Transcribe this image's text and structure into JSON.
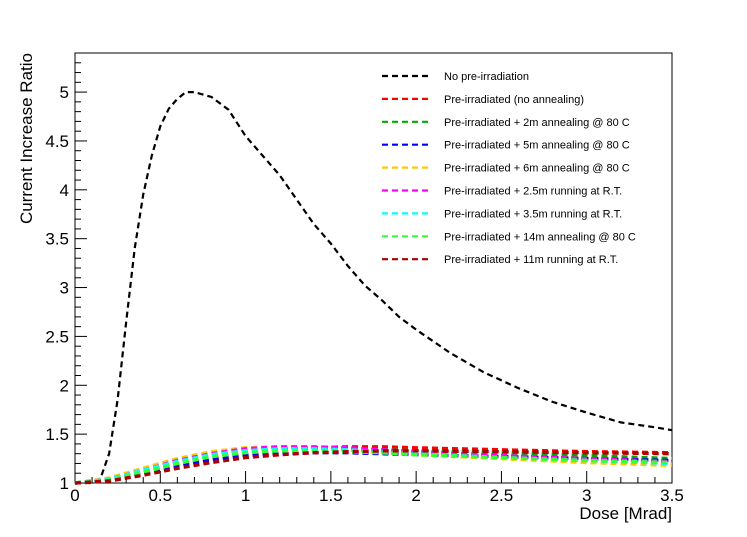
{
  "chart_data": {
    "type": "line",
    "title": "",
    "xlabel": "Dose [Mrad]",
    "ylabel": "Current Increase Ratio",
    "xlim": [
      0,
      3.5
    ],
    "ylim": [
      1,
      5.4
    ],
    "x_ticks": [
      0,
      0.5,
      1,
      1.5,
      2,
      2.5,
      3,
      3.5
    ],
    "x_tick_labels": [
      "0",
      "0.5",
      "1",
      "1.5",
      "2",
      "2.5",
      "3",
      "3.5"
    ],
    "y_ticks": [
      1,
      1.5,
      2,
      2.5,
      3,
      3.5,
      4,
      4.5,
      5
    ],
    "y_tick_labels": [
      "1",
      "1.5",
      "2",
      "2.5",
      "3",
      "3.5",
      "4",
      "4.5",
      "5"
    ],
    "legend_position": "top-right",
    "line_style": "dashed",
    "series": [
      {
        "name": "No pre-irradiation",
        "color": "#000000",
        "x": [
          0,
          0.1,
          0.15,
          0.2,
          0.25,
          0.3,
          0.35,
          0.4,
          0.45,
          0.5,
          0.55,
          0.6,
          0.65,
          0.7,
          0.8,
          0.9,
          1.0,
          1.1,
          1.2,
          1.3,
          1.4,
          1.5,
          1.6,
          1.7,
          1.8,
          1.9,
          2.0,
          2.2,
          2.4,
          2.6,
          2.8,
          3.0,
          3.2,
          3.4,
          3.5
        ],
        "y": [
          1.0,
          1.0,
          1.05,
          1.3,
          1.85,
          2.65,
          3.4,
          3.95,
          4.35,
          4.65,
          4.83,
          4.93,
          5.0,
          5.0,
          4.95,
          4.82,
          4.55,
          4.35,
          4.15,
          3.9,
          3.65,
          3.45,
          3.22,
          3.02,
          2.87,
          2.7,
          2.57,
          2.33,
          2.13,
          1.97,
          1.83,
          1.72,
          1.62,
          1.57,
          1.54
        ]
      },
      {
        "name": "Pre-irradiated (no annealing)",
        "color": "#ff0000",
        "x": [
          0,
          0.2,
          0.4,
          0.6,
          0.8,
          1.0,
          1.2,
          1.4,
          1.6,
          1.8,
          2.0,
          2.5,
          3.0,
          3.5
        ],
        "y": [
          1.0,
          1.03,
          1.1,
          1.18,
          1.25,
          1.3,
          1.34,
          1.36,
          1.37,
          1.37,
          1.36,
          1.34,
          1.32,
          1.31
        ]
      },
      {
        "name": "Pre-irradiated + 2m annealing @ 80 C",
        "color": "#00aa00",
        "x": [
          0,
          0.2,
          0.4,
          0.6,
          0.8,
          1.0,
          1.2,
          1.4,
          1.6,
          1.8,
          2.0,
          2.5,
          3.0,
          3.5
        ],
        "y": [
          1.0,
          1.04,
          1.12,
          1.21,
          1.28,
          1.33,
          1.35,
          1.36,
          1.35,
          1.34,
          1.33,
          1.31,
          1.28,
          1.25
        ]
      },
      {
        "name": "Pre-irradiated + 5m annealing @ 80 C",
        "color": "#0000ff",
        "x": [
          0,
          0.2,
          0.4,
          0.6,
          0.8,
          1.0,
          1.2,
          1.4,
          1.6,
          1.8,
          2.0,
          2.5,
          3.0,
          3.5
        ],
        "y": [
          1.0,
          1.03,
          1.1,
          1.18,
          1.24,
          1.28,
          1.3,
          1.31,
          1.31,
          1.3,
          1.29,
          1.27,
          1.25,
          1.23
        ]
      },
      {
        "name": "Pre-irradiated + 6m annealing @ 80 C",
        "color": "#ffc800",
        "x": [
          0,
          0.2,
          0.4,
          0.6,
          0.8,
          1.0,
          1.2,
          1.4,
          1.6,
          1.8,
          2.0,
          2.5,
          3.0,
          3.5
        ],
        "y": [
          1.0,
          1.05,
          1.15,
          1.25,
          1.32,
          1.36,
          1.37,
          1.36,
          1.34,
          1.31,
          1.29,
          1.25,
          1.21,
          1.18
        ]
      },
      {
        "name": "Pre-irradiated + 2.5m running at R.T.",
        "color": "#ff00ff",
        "x": [
          0,
          0.2,
          0.4,
          0.6,
          0.8,
          1.0,
          1.2,
          1.4,
          1.6,
          1.8,
          2.0,
          2.5,
          3.0,
          3.5
        ],
        "y": [
          1.0,
          1.04,
          1.13,
          1.23,
          1.3,
          1.35,
          1.37,
          1.37,
          1.36,
          1.34,
          1.32,
          1.28,
          1.25,
          1.22
        ]
      },
      {
        "name": "Pre-irradiated + 3.5m running at R.T.",
        "color": "#00ffff",
        "x": [
          0,
          0.2,
          0.4,
          0.6,
          0.8,
          1.0,
          1.2,
          1.4,
          1.6,
          1.8,
          2.0,
          2.5,
          3.0,
          3.5
        ],
        "y": [
          1.0,
          1.04,
          1.13,
          1.22,
          1.29,
          1.33,
          1.35,
          1.35,
          1.34,
          1.32,
          1.3,
          1.26,
          1.23,
          1.2
        ]
      },
      {
        "name": "Pre-irradiated + 14m annealing @ 80 C",
        "color": "#33ff33",
        "x": [
          0,
          0.2,
          0.4,
          0.6,
          0.8,
          1.0,
          1.2,
          1.4,
          1.6,
          1.8,
          2.0,
          2.5,
          3.0,
          3.5
        ],
        "y": [
          1.0,
          1.03,
          1.11,
          1.2,
          1.27,
          1.31,
          1.33,
          1.33,
          1.32,
          1.31,
          1.29,
          1.26,
          1.23,
          1.21
        ]
      },
      {
        "name": "Pre-irradiated + 11m running at R.T.",
        "color": "#aa0000",
        "x": [
          0,
          0.2,
          0.4,
          0.6,
          0.8,
          1.0,
          1.2,
          1.4,
          1.6,
          1.8,
          2.0,
          2.5,
          3.0,
          3.5
        ],
        "y": [
          1.0,
          1.02,
          1.08,
          1.15,
          1.21,
          1.26,
          1.29,
          1.31,
          1.32,
          1.33,
          1.33,
          1.32,
          1.31,
          1.3
        ]
      }
    ]
  }
}
